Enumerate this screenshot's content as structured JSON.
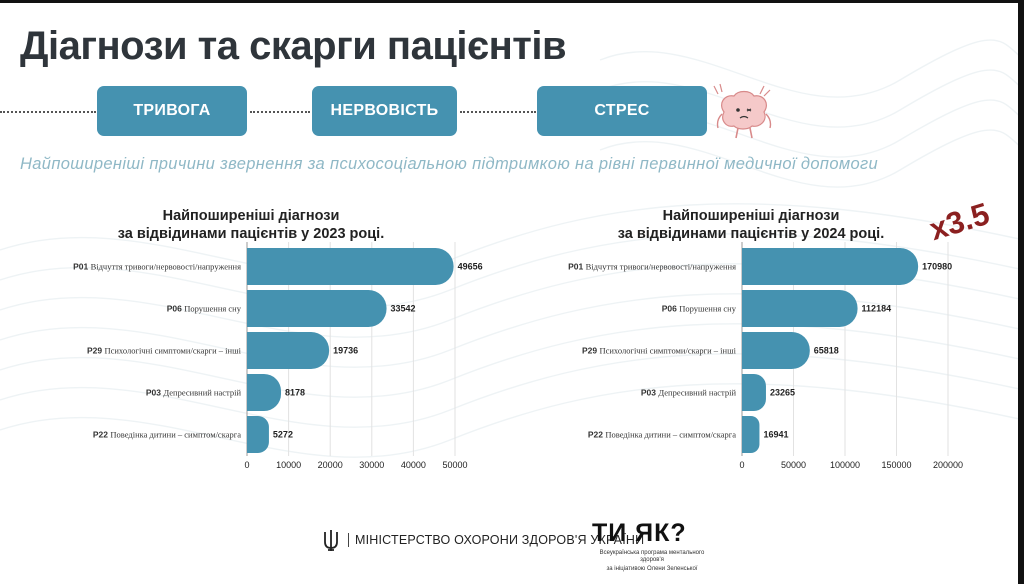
{
  "title": "Діагнози та скарги пацієнтів",
  "pills": [
    "ТРИВОГА",
    "НЕРВОВІСТЬ",
    "СТРЕС"
  ],
  "subtitle": "Найпоширеніші причини звернення за психосоціальною підтримкою на рівні первинної медичної допомоги",
  "multiplier": "x3.5",
  "footer": {
    "ministry": "МІНІСТЕРСТВО ОХОРОНИ ЗДОРОВ'Я УКРАЇНИ",
    "program_name": "ТИ ЯК?",
    "program_note_1": "Всеукраїнська програма ментального здоров'я",
    "program_note_2": "за ініціативою Олени Зеленської"
  },
  "colors": {
    "accent": "#4592b0",
    "title": "#2f353b",
    "multiplier": "#8b2020",
    "subtitle": "#8fb8c6"
  },
  "chart_data": [
    {
      "type": "bar",
      "orientation": "horizontal",
      "title_line1": "Найпоширеніші діагнози",
      "title_line2": "за відвідинами пацієнтів у 2023 році.",
      "categories": [
        {
          "code": "P01",
          "label": "Відчуття тривоги/нервовості/напруження"
        },
        {
          "code": "P06",
          "label": "Порушення сну"
        },
        {
          "code": "P29",
          "label": "Психологічні симптоми/скарги – інші"
        },
        {
          "code": "P03",
          "label": "Депресивний настрій"
        },
        {
          "code": "P22",
          "label": "Поведінка дитини – симптом/скарга"
        }
      ],
      "values": [
        49656,
        33542,
        19736,
        8178,
        5272
      ],
      "xticks": [
        0,
        10000,
        20000,
        30000,
        40000,
        50000
      ],
      "xlim": [
        0,
        55000
      ],
      "grid": true
    },
    {
      "type": "bar",
      "orientation": "horizontal",
      "title_line1": "Найпоширеніші діагнози",
      "title_line2": "за відвідинами пацієнтів у 2024 році.",
      "categories": [
        {
          "code": "P01",
          "label": "Відчуття тривоги/нервовості/напруження"
        },
        {
          "code": "P06",
          "label": "Порушення сну"
        },
        {
          "code": "P29",
          "label": "Психологічні симптоми/скарги – інші"
        },
        {
          "code": "P03",
          "label": "Депресивний настрій"
        },
        {
          "code": "P22",
          "label": "Поведінка дитини – симптом/скарга"
        }
      ],
      "values": [
        170980,
        112184,
        65818,
        23265,
        16941
      ],
      "xticks": [
        0,
        50000,
        100000,
        150000,
        200000
      ],
      "xlim": [
        0,
        220000
      ],
      "grid": true
    }
  ]
}
